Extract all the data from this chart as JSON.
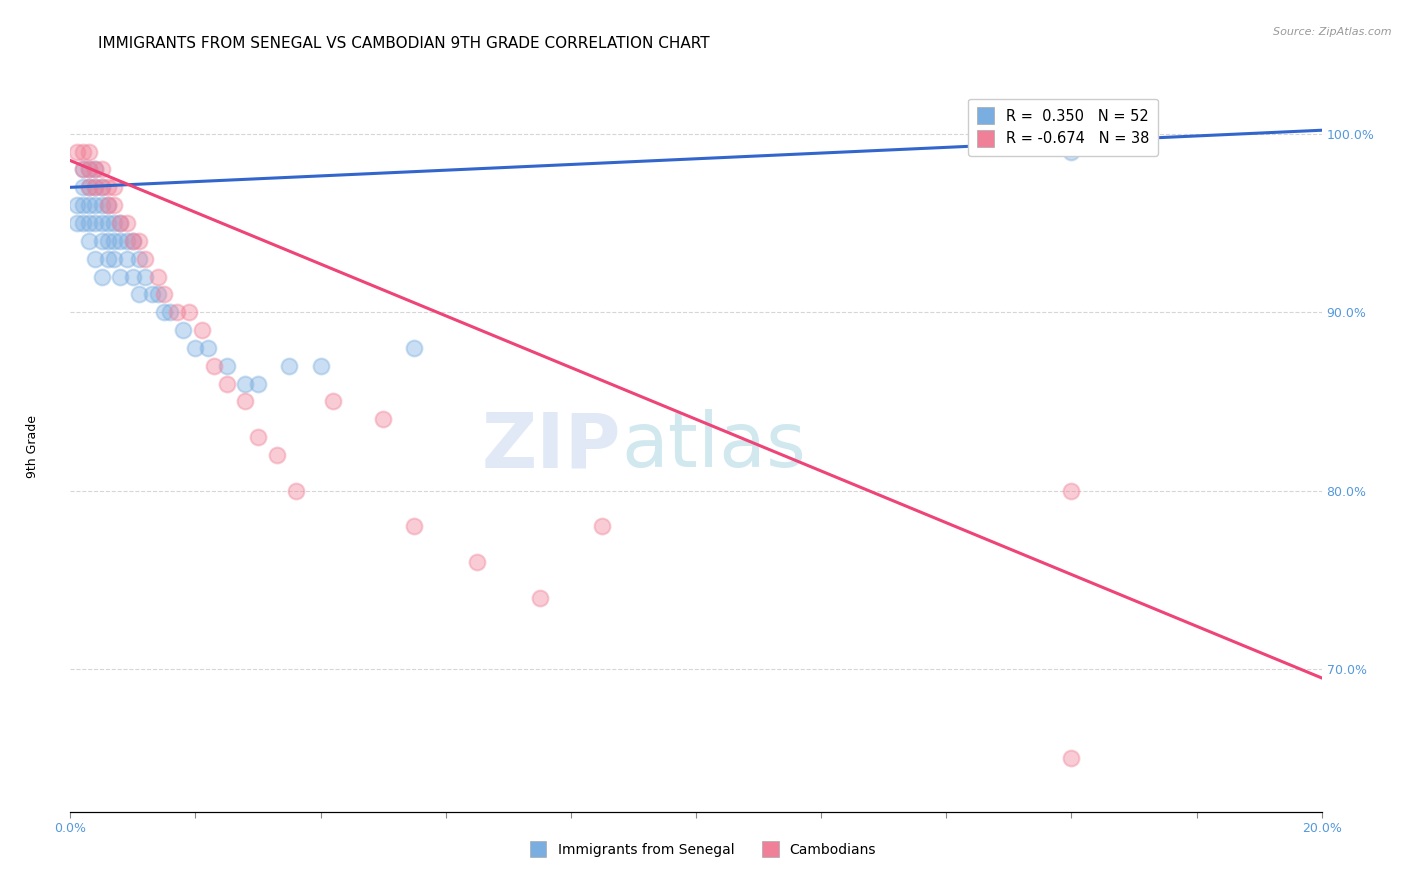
{
  "title": "IMMIGRANTS FROM SENEGAL VS CAMBODIAN 9TH GRADE CORRELATION CHART",
  "source": "Source: ZipAtlas.com",
  "ylabel": "9th Grade",
  "ytick_labels": [
    "100.0%",
    "90.0%",
    "80.0%",
    "70.0%"
  ],
  "ytick_positions": [
    1.0,
    0.9,
    0.8,
    0.7
  ],
  "legend_r_entries": [
    {
      "label": "R =  0.350   N = 52",
      "color": "#7aade0"
    },
    {
      "label": "R = -0.674   N = 38",
      "color": "#f08098"
    }
  ],
  "watermark": "ZIPatlas",
  "xlim": [
    0.0,
    0.2
  ],
  "ylim": [
    0.62,
    1.03
  ],
  "blue_scatter_x": [
    0.001,
    0.001,
    0.002,
    0.002,
    0.002,
    0.002,
    0.003,
    0.003,
    0.003,
    0.003,
    0.003,
    0.004,
    0.004,
    0.004,
    0.004,
    0.004,
    0.005,
    0.005,
    0.005,
    0.005,
    0.005,
    0.006,
    0.006,
    0.006,
    0.006,
    0.007,
    0.007,
    0.007,
    0.008,
    0.008,
    0.008,
    0.009,
    0.009,
    0.01,
    0.01,
    0.011,
    0.011,
    0.012,
    0.013,
    0.014,
    0.015,
    0.016,
    0.018,
    0.02,
    0.022,
    0.025,
    0.028,
    0.03,
    0.035,
    0.04,
    0.055,
    0.16
  ],
  "blue_scatter_y": [
    0.95,
    0.96,
    0.97,
    0.98,
    0.96,
    0.95,
    0.98,
    0.97,
    0.96,
    0.95,
    0.94,
    0.98,
    0.97,
    0.96,
    0.95,
    0.93,
    0.97,
    0.96,
    0.95,
    0.94,
    0.92,
    0.96,
    0.95,
    0.94,
    0.93,
    0.95,
    0.94,
    0.93,
    0.95,
    0.94,
    0.92,
    0.94,
    0.93,
    0.94,
    0.92,
    0.93,
    0.91,
    0.92,
    0.91,
    0.91,
    0.9,
    0.9,
    0.89,
    0.88,
    0.88,
    0.87,
    0.86,
    0.86,
    0.87,
    0.87,
    0.88,
    0.99
  ],
  "pink_scatter_x": [
    0.001,
    0.002,
    0.002,
    0.003,
    0.003,
    0.003,
    0.004,
    0.004,
    0.005,
    0.005,
    0.006,
    0.006,
    0.007,
    0.007,
    0.008,
    0.009,
    0.01,
    0.011,
    0.012,
    0.014,
    0.015,
    0.017,
    0.019,
    0.021,
    0.023,
    0.025,
    0.028,
    0.03,
    0.033,
    0.036,
    0.042,
    0.05,
    0.055,
    0.065,
    0.075,
    0.085,
    0.16,
    0.16
  ],
  "pink_scatter_y": [
    0.99,
    0.99,
    0.98,
    0.99,
    0.98,
    0.97,
    0.98,
    0.97,
    0.98,
    0.97,
    0.97,
    0.96,
    0.97,
    0.96,
    0.95,
    0.95,
    0.94,
    0.94,
    0.93,
    0.92,
    0.91,
    0.9,
    0.9,
    0.89,
    0.87,
    0.86,
    0.85,
    0.83,
    0.82,
    0.8,
    0.85,
    0.84,
    0.78,
    0.76,
    0.74,
    0.78,
    0.8,
    0.65
  ],
  "blue_line_x0": 0.0,
  "blue_line_x1": 0.2,
  "blue_line_y0": 0.97,
  "blue_line_y1": 1.002,
  "pink_line_x0": 0.0,
  "pink_line_x1": 0.2,
  "pink_line_y0": 0.985,
  "pink_line_y1": 0.695,
  "scatter_size": 130,
  "scatter_alpha": 0.4,
  "blue_color": "#7aade0",
  "pink_color": "#f08098",
  "blue_line_color": "#3366cc",
  "pink_line_color": "#ee4477",
  "background_color": "#ffffff",
  "grid_color": "#cccccc",
  "right_axis_color": "#5599dd",
  "title_fontsize": 11,
  "label_fontsize": 9,
  "tick_fontsize": 9,
  "source_text": "Source: ZipAtlas.com"
}
